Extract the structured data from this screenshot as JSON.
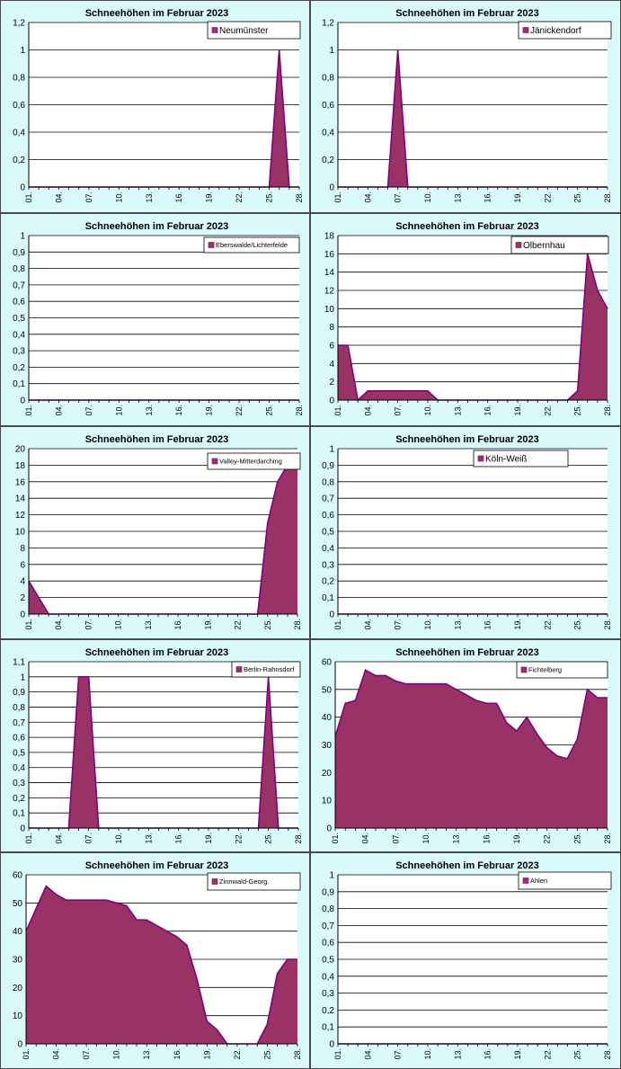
{
  "colors": {
    "fill": "#993366",
    "stroke": "#800080",
    "panel_bg": "#d9f9fb",
    "plot_bg": "#ffffff",
    "grid": "#000000"
  },
  "x_tick_labels": [
    "01.",
    "04.",
    "07.",
    "10.",
    "13.",
    "16.",
    "19.",
    "22.",
    "25.",
    "28."
  ],
  "chart_data": [
    {
      "type": "area",
      "title": "Schneehöhen im Februar 2023",
      "legend": "Neumünster",
      "ylim": [
        0,
        1.2
      ],
      "yticks": [
        "0",
        "0,2",
        "0,4",
        "0,6",
        "0,8",
        "1",
        "1,2"
      ],
      "x": [
        "01.",
        "02.",
        "03.",
        "04.",
        "05.",
        "06.",
        "07.",
        "08.",
        "09.",
        "10.",
        "11.",
        "12.",
        "13.",
        "14.",
        "15.",
        "16.",
        "17.",
        "18.",
        "19.",
        "20.",
        "21.",
        "22.",
        "23.",
        "24.",
        "25.",
        "26.",
        "27.",
        "28."
      ],
      "values": [
        0,
        0,
        0,
        0,
        0,
        0,
        0,
        0,
        0,
        0,
        0,
        0,
        0,
        0,
        0,
        0,
        0,
        0,
        0,
        0,
        0,
        0,
        0,
        0,
        0,
        1,
        0,
        0
      ]
    },
    {
      "type": "area",
      "title": "Schneehöhen im Februar 2023",
      "legend": "Jänickendorf",
      "ylim": [
        0,
        1.2
      ],
      "yticks": [
        "0",
        "0,2",
        "0,4",
        "0,6",
        "0,8",
        "1",
        "1,2"
      ],
      "x": [
        "01.",
        "02.",
        "03.",
        "04.",
        "05.",
        "06.",
        "07.",
        "08.",
        "09.",
        "10.",
        "11.",
        "12.",
        "13.",
        "14.",
        "15.",
        "16.",
        "17.",
        "18.",
        "19.",
        "20.",
        "21.",
        "22.",
        "23.",
        "24.",
        "25.",
        "26.",
        "27.",
        "28."
      ],
      "values": [
        0,
        0,
        0,
        0,
        0,
        0,
        1,
        0,
        0,
        0,
        0,
        0,
        0,
        0,
        0,
        0,
        0,
        0,
        0,
        0,
        0,
        0,
        0,
        0,
        0,
        0,
        0,
        0
      ]
    },
    {
      "type": "area",
      "title": "Schneehöhen im Februar 2023",
      "legend": "Eberswalde/Lichterfelde",
      "ylim": [
        0,
        1
      ],
      "yticks": [
        "0",
        "0,1",
        "0,2",
        "0,3",
        "0,4",
        "0,5",
        "0,6",
        "0,7",
        "0,8",
        "0,9",
        "1"
      ],
      "x": [
        "01.",
        "02.",
        "03.",
        "04.",
        "05.",
        "06.",
        "07.",
        "08.",
        "09.",
        "10.",
        "11.",
        "12.",
        "13.",
        "14.",
        "15.",
        "16.",
        "17.",
        "18.",
        "19.",
        "20.",
        "21.",
        "22.",
        "23.",
        "24.",
        "25.",
        "26.",
        "27.",
        "28."
      ],
      "values": [
        0,
        0,
        0,
        0,
        0,
        0,
        0,
        0,
        0,
        0,
        0,
        0,
        0,
        0,
        0,
        0,
        0,
        0,
        0,
        0,
        0,
        0,
        0,
        0,
        0,
        0,
        0,
        0
      ]
    },
    {
      "type": "area",
      "title": "Schneehöhen im Februar 2023",
      "legend": "Olbernhau",
      "ylim": [
        0,
        18
      ],
      "yticks": [
        "0",
        "2",
        "4",
        "6",
        "8",
        "10",
        "12",
        "14",
        "16",
        "18"
      ],
      "x": [
        "01.",
        "02.",
        "03.",
        "04.",
        "05.",
        "06.",
        "07.",
        "08.",
        "09.",
        "10.",
        "11.",
        "12.",
        "13.",
        "14.",
        "15.",
        "16.",
        "17.",
        "18.",
        "19.",
        "20.",
        "21.",
        "22.",
        "23.",
        "24.",
        "25.",
        "26.",
        "27.",
        "28."
      ],
      "values": [
        6,
        6,
        0,
        1,
        1,
        1,
        1,
        1,
        1,
        1,
        0,
        0,
        0,
        0,
        0,
        0,
        0,
        0,
        0,
        0,
        0,
        0,
        0,
        0,
        1,
        16,
        12,
        10
      ]
    },
    {
      "type": "area",
      "title": "Schneehöhen im Februar 2023",
      "legend": "Valley-Mitterdarching",
      "ylim": [
        0,
        20
      ],
      "yticks": [
        "0",
        "2",
        "4",
        "6",
        "8",
        "10",
        "12",
        "14",
        "16",
        "18",
        "20"
      ],
      "x": [
        "01.",
        "02.",
        "03.",
        "04.",
        "05.",
        "06.",
        "07.",
        "08.",
        "09.",
        "10.",
        "11.",
        "12.",
        "13.",
        "14.",
        "15.",
        "16.",
        "17.",
        "18.",
        "19.",
        "20.",
        "21.",
        "22.",
        "23.",
        "24.",
        "25.",
        "26.",
        "27.",
        "28."
      ],
      "values": [
        4,
        2,
        0,
        0,
        0,
        0,
        0,
        0,
        0,
        0,
        0,
        0,
        0,
        0,
        0,
        0,
        0,
        0,
        0,
        0,
        0,
        0,
        0,
        0,
        11,
        16,
        18,
        18
      ]
    },
    {
      "type": "area",
      "title": "Schneehöhen im Februar 2023",
      "legend": "Köln-Weiß",
      "ylim": [
        0,
        1
      ],
      "yticks": [
        "0",
        "0,1",
        "0,2",
        "0,3",
        "0,4",
        "0,5",
        "0,6",
        "0,7",
        "0,8",
        "0,9",
        "1"
      ],
      "x": [
        "01.",
        "02.",
        "03.",
        "04.",
        "05.",
        "06.",
        "07.",
        "08.",
        "09.",
        "10.",
        "11.",
        "12.",
        "13.",
        "14.",
        "15.",
        "16.",
        "17.",
        "18.",
        "19.",
        "20.",
        "21.",
        "22.",
        "23.",
        "24.",
        "25.",
        "26.",
        "27.",
        "28."
      ],
      "values": [
        0,
        0,
        0,
        0,
        0,
        0,
        0,
        0,
        0,
        0,
        0,
        0,
        0,
        0,
        0,
        0,
        0,
        0,
        0,
        0,
        0,
        0,
        0,
        0,
        0,
        0,
        0,
        0
      ]
    },
    {
      "type": "area",
      "title": "Schneehöhen im Februar 2023",
      "legend": "Berlin-Rahnsdorf",
      "ylim": [
        0,
        1.1
      ],
      "yticks": [
        "0",
        "0,1",
        "0,2",
        "0,3",
        "0,4",
        "0,5",
        "0,6",
        "0,7",
        "0,8",
        "0,9",
        "1",
        "1,1"
      ],
      "x": [
        "01.",
        "02.",
        "03.",
        "04.",
        "05.",
        "06.",
        "07.",
        "08.",
        "09.",
        "10.",
        "11.",
        "12.",
        "13.",
        "14.",
        "15.",
        "16.",
        "17.",
        "18.",
        "19.",
        "20.",
        "21.",
        "22.",
        "23.",
        "24.",
        "25.",
        "26.",
        "27.",
        "28."
      ],
      "values": [
        0,
        0,
        0,
        0,
        0,
        1,
        1,
        0,
        0,
        0,
        0,
        0,
        0,
        0,
        0,
        0,
        0,
        0,
        0,
        0,
        0,
        0,
        0,
        0,
        1,
        0,
        0,
        0
      ]
    },
    {
      "type": "area",
      "title": "Schneehöhen im Februar 2023",
      "legend": "Fichtelberg",
      "ylim": [
        0,
        60
      ],
      "yticks": [
        "0",
        "10",
        "20",
        "30",
        "40",
        "50",
        "60"
      ],
      "x": [
        "01.",
        "02.",
        "03.",
        "04.",
        "05.",
        "06.",
        "07.",
        "08.",
        "09.",
        "10.",
        "11.",
        "12.",
        "13.",
        "14.",
        "15.",
        "16.",
        "17.",
        "18.",
        "19.",
        "20.",
        "21.",
        "22.",
        "23.",
        "24.",
        "25.",
        "26.",
        "27.",
        "28."
      ],
      "values": [
        33,
        45,
        46,
        57,
        55,
        55,
        53,
        52,
        52,
        52,
        52,
        52,
        50,
        48,
        46,
        45,
        45,
        38,
        35,
        40,
        34,
        29,
        26,
        25,
        32,
        50,
        47,
        47
      ]
    },
    {
      "type": "area",
      "title": "Schneehöhen im Februar 2023",
      "legend": "Zinnwald-Georg.",
      "ylim": [
        0,
        60
      ],
      "yticks": [
        "0",
        "10",
        "20",
        "30",
        "40",
        "50",
        "60"
      ],
      "x": [
        "01.",
        "02.",
        "03.",
        "04.",
        "05.",
        "06.",
        "07.",
        "08.",
        "09.",
        "10.",
        "11.",
        "12.",
        "13.",
        "14.",
        "15.",
        "16.",
        "17.",
        "18.",
        "19.",
        "20.",
        "21.",
        "22.",
        "23.",
        "24.",
        "25.",
        "26.",
        "27.",
        "28."
      ],
      "values": [
        40,
        48,
        56,
        53,
        51,
        51,
        51,
        51,
        51,
        50,
        49,
        44,
        44,
        42,
        40,
        38,
        35,
        23,
        8,
        5,
        0,
        0,
        0,
        0,
        7,
        25,
        30,
        30
      ]
    },
    {
      "type": "area",
      "title": "Schneehöhen im Februar 2023",
      "legend": "Ahlen",
      "ylim": [
        0,
        1
      ],
      "yticks": [
        "0",
        "0,1",
        "0,2",
        "0,3",
        "0,4",
        "0,5",
        "0,6",
        "0,7",
        "0,8",
        "0,9",
        "1"
      ],
      "x": [
        "01.",
        "02.",
        "03.",
        "04.",
        "05.",
        "06.",
        "07.",
        "08.",
        "09.",
        "10.",
        "11.",
        "12.",
        "13.",
        "14.",
        "15.",
        "16.",
        "17.",
        "18.",
        "19.",
        "20.",
        "21.",
        "22.",
        "23.",
        "24.",
        "25.",
        "26.",
        "27.",
        "28."
      ],
      "values": [
        0,
        0,
        0,
        0,
        0,
        0,
        0,
        0,
        0,
        0,
        0,
        0,
        0,
        0,
        0,
        0,
        0,
        0,
        0,
        0,
        0,
        0,
        0,
        0,
        0,
        0,
        0,
        0
      ]
    }
  ]
}
